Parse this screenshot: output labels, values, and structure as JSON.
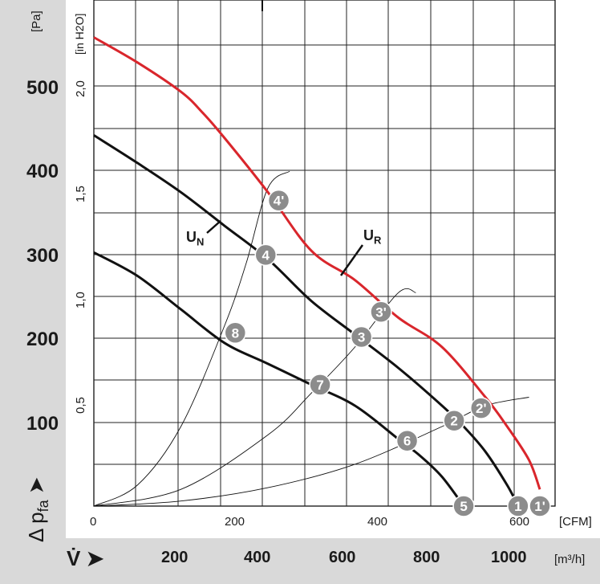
{
  "chart_data": {
    "type": "line",
    "axes": {
      "pressure_pa": {
        "unit": "[Pa]",
        "ticks": [
          "100",
          "200",
          "300",
          "400",
          "500"
        ],
        "label": "Δ p_fa"
      },
      "pressure_inh2o": {
        "unit": "[in H2O]",
        "ticks": [
          "0,5",
          "1,0",
          "1,5",
          "2,0"
        ]
      },
      "flow_cfm": {
        "unit": "[CFM]",
        "ticks": [
          "0",
          "200",
          "400",
          "600"
        ]
      },
      "flow_m3h": {
        "unit": "[m³/h]",
        "ticks": [
          "200",
          "400",
          "600",
          "800",
          "1000"
        ],
        "label": "V̇"
      },
      "xlim_m3h": [
        0,
        1060
      ],
      "ylim_pa": [
        0,
        600
      ],
      "grid": true
    },
    "series": [
      {
        "name": "U_R",
        "color": "#d9262c",
        "x": [
          0,
          100,
          200,
          250,
          300,
          400,
          500,
          600,
          700,
          800,
          900,
          950,
          1000,
          1025
        ],
        "y": [
          560,
          530,
          495,
          470,
          440,
          375,
          305,
          270,
          225,
          190,
          130,
          95,
          55,
          20
        ]
      },
      {
        "name": "U_N",
        "color": "#111111",
        "x": [
          0,
          100,
          200,
          300,
          400,
          500,
          600,
          700,
          800,
          850,
          900,
          950,
          975
        ],
        "y": [
          443,
          410,
          375,
          335,
          295,
          245,
          205,
          165,
          120,
          95,
          65,
          25,
          0
        ]
      },
      {
        "name": "",
        "color": "#111111",
        "x": [
          0,
          100,
          200,
          300,
          400,
          500,
          600,
          700,
          750,
          800,
          850
        ],
        "y": [
          303,
          275,
          235,
          195,
          170,
          145,
          120,
          80,
          60,
          35,
          0
        ]
      }
    ],
    "system_curves": [
      {
        "x": [
          0,
          100,
          200,
          300,
          350,
          400,
          450
        ],
        "y": [
          0,
          25,
          95,
          215,
          290,
          380,
          400
        ]
      },
      {
        "x": [
          0,
          200,
          400,
          500,
          600,
          700,
          740
        ],
        "y": [
          0,
          20,
          85,
          135,
          190,
          255,
          255
        ]
      },
      {
        "x": [
          0,
          200,
          400,
          600,
          800,
          900,
          1000
        ],
        "y": [
          0,
          6,
          22,
          50,
          95,
          120,
          130
        ]
      }
    ],
    "points": [
      {
        "label": "1'",
        "x": 1025,
        "y": 0
      },
      {
        "label": "1",
        "x": 975,
        "y": 0
      },
      {
        "label": "5",
        "x": 850,
        "y": 0
      },
      {
        "label": "2'",
        "x": 890,
        "y": 117
      },
      {
        "label": "2",
        "x": 828,
        "y": 102
      },
      {
        "label": "6",
        "x": 720,
        "y": 78
      },
      {
        "label": "3'",
        "x": 660,
        "y": 232
      },
      {
        "label": "3",
        "x": 615,
        "y": 202
      },
      {
        "label": "7",
        "x": 520,
        "y": 145
      },
      {
        "label": "4'",
        "x": 425,
        "y": 365
      },
      {
        "label": "4",
        "x": 395,
        "y": 300
      },
      {
        "label": "8",
        "x": 325,
        "y": 207
      }
    ]
  }
}
